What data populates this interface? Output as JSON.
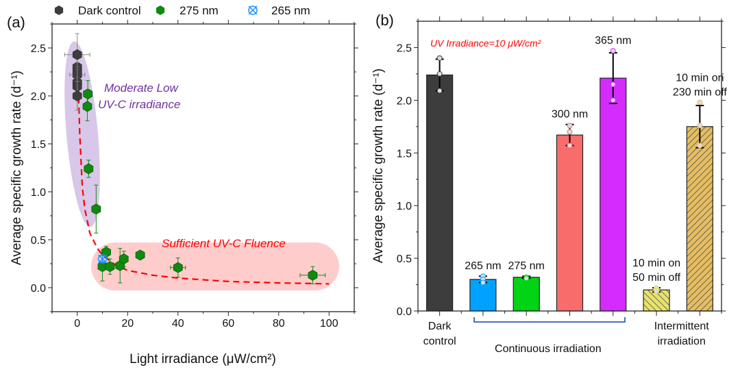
{
  "colors": {
    "dark": "#3d3d3d",
    "nm275": "#0f8a0f",
    "nm265": "#1e90ff",
    "fit": "#ff0000",
    "moderate_region": "#d8c7e8",
    "fluence_region": "#ffcccc",
    "annotation_purple": "#7030a0",
    "annotation_red": "#ff0000",
    "brace": "#4472c4"
  },
  "chart_data": [
    {
      "type": "scatter",
      "panel_label": "(a)",
      "xlabel": "Light irradiance (μW/cm²)",
      "ylabel": "Average specific growth rate (d⁻¹)",
      "xlim": [
        -10,
        110
      ],
      "ylim": [
        -0.25,
        2.75
      ],
      "xticks": [
        "0",
        "20",
        "40",
        "60",
        "80",
        "100"
      ],
      "yticks": [
        "0.0",
        "0.5",
        "1.0",
        "1.5",
        "2.0",
        "2.5"
      ],
      "legend_position": "top",
      "annotations": [
        "Moderate Low",
        "UV-C irradiance",
        "Sufficient UV-C Fluence"
      ],
      "series": [
        {
          "name": "Dark control",
          "marker": "hexagon",
          "color": "#3d3d3d",
          "points": [
            {
              "x": 0,
              "y": 2.43,
              "xerr": 5,
              "yerr": 0.22
            },
            {
              "x": 0,
              "y": 2.3,
              "xerr": 0,
              "yerr": 0.05
            },
            {
              "x": 0,
              "y": 2.25,
              "xerr": 0,
              "yerr": 0.05
            },
            {
              "x": 0,
              "y": 2.22,
              "xerr": 3,
              "yerr": 0.05
            },
            {
              "x": 0,
              "y": 2.14,
              "xerr": 0,
              "yerr": 0.05
            },
            {
              "x": 0,
              "y": 2.1,
              "xerr": 0,
              "yerr": 0.25
            },
            {
              "x": 0,
              "y": 2.0,
              "xerr": 0,
              "yerr": 0.15
            }
          ]
        },
        {
          "name": "275 nm",
          "marker": "hexagon",
          "color": "#0f8a0f",
          "points": [
            {
              "x": 4.2,
              "y": 2.02,
              "xerr": 0,
              "yerr": 0.14
            },
            {
              "x": 4.0,
              "y": 1.89,
              "xerr": 0,
              "yerr": 0.15
            },
            {
              "x": 4.5,
              "y": 1.24,
              "xerr": 0,
              "yerr": 0.09
            },
            {
              "x": 7.5,
              "y": 0.82,
              "xerr": 0,
              "yerr": 0.25
            },
            {
              "x": 11.5,
              "y": 0.37,
              "xerr": 0,
              "yerr": 0.06
            },
            {
              "x": 10,
              "y": 0.22,
              "xerr": 0,
              "yerr": 0.15
            },
            {
              "x": 13,
              "y": 0.22,
              "xerr": 0,
              "yerr": 0.08
            },
            {
              "x": 17,
              "y": 0.23,
              "xerr": 0,
              "yerr": 0.18
            },
            {
              "x": 18.5,
              "y": 0.3,
              "xerr": 1.5,
              "yerr": 0.08
            },
            {
              "x": 25,
              "y": 0.34,
              "xerr": 0,
              "yerr": 0
            },
            {
              "x": 40,
              "y": 0.21,
              "xerr": 3,
              "yerr": 0.1
            },
            {
              "x": 93.5,
              "y": 0.13,
              "xerr": 5,
              "yerr": 0.09
            }
          ]
        },
        {
          "name": "265 nm",
          "marker": "crossed-circle",
          "color": "#1e90ff",
          "points": [
            {
              "x": 10,
              "y": 0.3,
              "xerr": 0,
              "yerr": 0.03
            }
          ]
        }
      ],
      "fit_curve": {
        "style": "dashed",
        "color": "#ff0000",
        "points": [
          [
            0.3,
            2.2
          ],
          [
            1,
            1.6
          ],
          [
            2,
            1.05
          ],
          [
            3,
            0.82
          ],
          [
            5,
            0.57
          ],
          [
            8,
            0.41
          ],
          [
            10,
            0.34
          ],
          [
            15,
            0.24
          ],
          [
            20,
            0.18
          ],
          [
            30,
            0.13
          ],
          [
            40,
            0.1
          ],
          [
            60,
            0.065
          ],
          [
            80,
            0.05
          ],
          [
            100,
            0.04
          ]
        ]
      }
    },
    {
      "type": "bar",
      "panel_label": "(b)",
      "ylabel": "Average specific growth rate (d⁻¹)",
      "ylim": [
        0,
        2.75
      ],
      "yticks": [
        "0.0",
        "0.5",
        "1.0",
        "1.5",
        "2.0",
        "2.5"
      ],
      "annotation": "UV Irradiance=10 μW/cm²",
      "group_labels": [
        {
          "lines": [
            "Dark",
            "control"
          ]
        },
        {
          "lines": [
            "Continuous irradiation"
          ]
        },
        {
          "lines": [
            "Intermittent",
            "irradiation"
          ]
        }
      ],
      "bars": [
        {
          "label": [],
          "value": 2.24,
          "err": 0.15,
          "color": "#3d3d3d",
          "hatch": "none",
          "replicates": [
            2.4,
            2.25,
            2.09
          ]
        },
        {
          "label": [
            "265 nm"
          ],
          "value": 0.3,
          "err": 0.03,
          "color": "#00a2ff",
          "hatch": "none",
          "replicates": [
            0.33,
            0.3,
            0.27
          ]
        },
        {
          "label": [
            "275 nm"
          ],
          "value": 0.32,
          "err": 0.01,
          "color": "#00d414",
          "hatch": "none",
          "replicates": [
            0.32,
            0.31,
            0.31
          ]
        },
        {
          "label": [
            "300 nm"
          ],
          "value": 1.67,
          "err": 0.1,
          "color": "#f96c6c",
          "hatch": "none",
          "replicates": [
            1.76,
            1.7,
            1.57
          ]
        },
        {
          "label": [
            "365 nm"
          ],
          "value": 2.21,
          "err": 0.24,
          "color": "#d42cff",
          "hatch": "none",
          "replicates": [
            2.47,
            2.15,
            2.0
          ]
        },
        {
          "label": [
            "10 min on",
            "50 min off"
          ],
          "value": 0.2,
          "err": 0.02,
          "color": "#e8e36a",
          "hatch": "backslash",
          "replicates": [
            0.22,
            0.2,
            0.19
          ]
        },
        {
          "label": [
            "10 min on",
            "230 min off"
          ],
          "value": 1.75,
          "err": 0.2,
          "color": "#e6bd60",
          "hatch": "slash",
          "replicates": [
            1.98,
            1.76,
            1.57
          ]
        }
      ]
    }
  ]
}
